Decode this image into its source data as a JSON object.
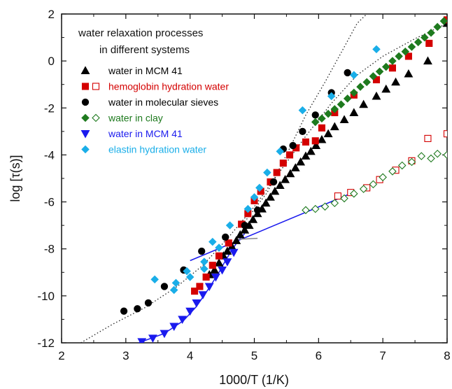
{
  "chart_data": {
    "type": "scatter",
    "title": [
      "water relaxation processes",
      "in different systems"
    ],
    "xlabel": "1000/T (1/K)",
    "ylabel": "log [τ(s)]",
    "xlim": [
      2,
      8
    ],
    "ylim": [
      -12,
      2
    ],
    "xticks": [
      "2",
      "3",
      "4",
      "5",
      "6",
      "7",
      "8"
    ],
    "yticks": [
      "-12",
      "-10",
      "-8",
      "-6",
      "-4",
      "-2",
      "0",
      "2"
    ],
    "grid": false,
    "legend_position": "top-left",
    "series": [
      {
        "name": "water in MCM 41",
        "color": "#000000",
        "marker": "triangle-up",
        "filled": true,
        "points": [
          [
            4.3,
            -9.1
          ],
          [
            4.38,
            -8.9
          ],
          [
            4.45,
            -8.6
          ],
          [
            4.52,
            -8.3
          ],
          [
            4.58,
            -8.1
          ],
          [
            4.65,
            -7.9
          ],
          [
            4.72,
            -7.65
          ],
          [
            4.78,
            -7.4
          ],
          [
            4.85,
            -7.2
          ],
          [
            4.92,
            -7.0
          ],
          [
            4.98,
            -6.75
          ],
          [
            5.05,
            -6.5
          ],
          [
            5.12,
            -6.3
          ],
          [
            5.18,
            -6.05
          ],
          [
            5.25,
            -5.8
          ],
          [
            5.32,
            -5.55
          ],
          [
            5.4,
            -5.3
          ],
          [
            5.48,
            -5.05
          ],
          [
            5.56,
            -4.8
          ],
          [
            5.64,
            -4.55
          ],
          [
            5.72,
            -4.3
          ],
          [
            5.8,
            -4.05
          ],
          [
            5.88,
            -3.85
          ],
          [
            5.96,
            -3.6
          ],
          [
            6.05,
            -3.35
          ],
          [
            6.15,
            -3.1
          ],
          [
            6.25,
            -2.8
          ],
          [
            6.4,
            -2.5
          ],
          [
            6.55,
            -2.2
          ],
          [
            6.7,
            -1.85
          ],
          [
            6.9,
            -1.5
          ],
          [
            7.05,
            -1.2
          ],
          [
            7.2,
            -0.9
          ],
          [
            7.4,
            -0.55
          ],
          [
            7.7,
            0.0
          ],
          [
            8.0,
            1.6
          ]
        ]
      },
      {
        "name": "hemoglobin hydration water",
        "color": "#d40000",
        "marker": "square",
        "filled": true,
        "points": [
          [
            4.07,
            -9.8
          ],
          [
            4.15,
            -9.6
          ],
          [
            4.25,
            -9.2
          ],
          [
            4.35,
            -8.7
          ],
          [
            4.45,
            -8.3
          ],
          [
            4.6,
            -7.75
          ],
          [
            4.8,
            -6.95
          ],
          [
            4.9,
            -6.5
          ],
          [
            5.0,
            -5.95
          ],
          [
            5.1,
            -5.55
          ],
          [
            5.25,
            -5.15
          ],
          [
            5.35,
            -4.75
          ],
          [
            5.45,
            -4.35
          ],
          [
            5.55,
            -4.0
          ],
          [
            5.65,
            -3.7
          ],
          [
            5.8,
            -3.45
          ],
          [
            5.95,
            -3.4
          ],
          [
            6.05,
            -2.85
          ],
          [
            6.25,
            -2.2
          ],
          [
            6.55,
            -1.45
          ],
          [
            6.9,
            -0.8
          ],
          [
            7.15,
            -0.3
          ],
          [
            7.4,
            0.2
          ],
          [
            7.72,
            0.75
          ],
          [
            8.0,
            1.75
          ]
        ]
      },
      {
        "name": "hemoglobin hydration water (open)",
        "color": "#d40000",
        "marker": "square",
        "filled": false,
        "points": [
          [
            6.3,
            -5.75
          ],
          [
            6.5,
            -5.6
          ],
          [
            6.75,
            -5.4
          ],
          [
            6.95,
            -5.05
          ],
          [
            7.2,
            -4.65
          ],
          [
            7.45,
            -4.25
          ],
          [
            7.7,
            -3.3
          ],
          [
            8.0,
            -3.1
          ]
        ]
      },
      {
        "name": "water in molecular sieves",
        "color": "#000000",
        "marker": "circle",
        "filled": true,
        "points": [
          [
            2.97,
            -10.65
          ],
          [
            3.18,
            -10.55
          ],
          [
            3.35,
            -10.3
          ],
          [
            3.6,
            -9.6
          ],
          [
            3.9,
            -8.9
          ],
          [
            4.18,
            -8.1
          ],
          [
            4.55,
            -7.5
          ],
          [
            4.85,
            -7.0
          ],
          [
            5.05,
            -6.35
          ],
          [
            5.3,
            -5.15
          ],
          [
            5.45,
            -3.75
          ],
          [
            5.6,
            -3.6
          ],
          [
            5.75,
            -3.0
          ],
          [
            5.95,
            -2.3
          ],
          [
            6.2,
            -1.35
          ],
          [
            6.45,
            -0.5
          ]
        ]
      },
      {
        "name": "water in clay",
        "color": "#1e7a1e",
        "marker": "diamond",
        "filled": true,
        "points": [
          [
            5.95,
            -2.6
          ],
          [
            6.05,
            -2.45
          ],
          [
            6.15,
            -2.25
          ],
          [
            6.25,
            -2.05
          ],
          [
            6.35,
            -1.85
          ],
          [
            6.45,
            -1.6
          ],
          [
            6.55,
            -1.35
          ],
          [
            6.65,
            -1.1
          ],
          [
            6.75,
            -0.9
          ],
          [
            6.85,
            -0.65
          ],
          [
            6.95,
            -0.45
          ],
          [
            7.05,
            -0.25
          ],
          [
            7.15,
            0.0
          ],
          [
            7.25,
            0.2
          ],
          [
            7.35,
            0.4
          ],
          [
            7.45,
            0.6
          ],
          [
            7.55,
            0.8
          ],
          [
            7.65,
            1.0
          ],
          [
            7.75,
            1.2
          ],
          [
            7.85,
            1.45
          ],
          [
            7.95,
            1.7
          ]
        ]
      },
      {
        "name": "water in clay (open)",
        "color": "#1e7a1e",
        "marker": "diamond",
        "filled": false,
        "points": [
          [
            5.8,
            -6.35
          ],
          [
            5.95,
            -6.3
          ],
          [
            6.1,
            -6.2
          ],
          [
            6.25,
            -6.05
          ],
          [
            6.4,
            -5.85
          ],
          [
            6.55,
            -5.65
          ],
          [
            6.7,
            -5.45
          ],
          [
            6.85,
            -5.25
          ],
          [
            7.0,
            -4.95
          ],
          [
            7.15,
            -4.7
          ],
          [
            7.3,
            -4.45
          ],
          [
            7.45,
            -4.3
          ],
          [
            7.6,
            -4.05
          ],
          [
            7.75,
            -4.15
          ],
          [
            7.85,
            -3.95
          ],
          [
            8.0,
            -4.0
          ]
        ]
      },
      {
        "name": "water in MCM 41 (blue)",
        "color": "#1a1aee",
        "marker": "triangle-down",
        "filled": true,
        "points": [
          [
            3.25,
            -11.95
          ],
          [
            3.42,
            -11.8
          ],
          [
            3.6,
            -11.6
          ],
          [
            3.75,
            -11.3
          ],
          [
            3.88,
            -11.0
          ],
          [
            4.0,
            -10.65
          ],
          [
            4.1,
            -10.3
          ],
          [
            4.2,
            -9.95
          ],
          [
            4.3,
            -9.6
          ],
          [
            4.4,
            -9.2
          ],
          [
            4.5,
            -8.9
          ],
          [
            4.58,
            -8.55
          ],
          [
            4.68,
            -8.15
          ]
        ]
      },
      {
        "name": "elastin hydration water",
        "color": "#1aaee8",
        "marker": "diamond",
        "filled": true,
        "points": [
          [
            3.45,
            -9.3
          ],
          [
            3.75,
            -9.75
          ],
          [
            3.78,
            -9.45
          ],
          [
            3.95,
            -8.95
          ],
          [
            4.0,
            -9.2
          ],
          [
            4.22,
            -8.55
          ],
          [
            4.22,
            -8.85
          ],
          [
            4.45,
            -7.95
          ],
          [
            4.35,
            -7.7
          ],
          [
            4.62,
            -7.0
          ],
          [
            4.9,
            -6.3
          ],
          [
            5.0,
            -5.8
          ],
          [
            5.08,
            -5.4
          ],
          [
            5.2,
            -4.75
          ],
          [
            5.4,
            -3.85
          ],
          [
            5.75,
            -2.1
          ],
          [
            6.2,
            -1.5
          ],
          [
            6.55,
            -0.6
          ],
          [
            6.9,
            0.5
          ]
        ]
      }
    ],
    "lines": [
      {
        "name": "MCM 41 low-T fit",
        "color": "#1a1aee",
        "points": [
          [
            3.2,
            -12.0
          ],
          [
            3.6,
            -11.6
          ],
          [
            3.9,
            -11.05
          ],
          [
            4.1,
            -10.45
          ],
          [
            4.3,
            -9.65
          ],
          [
            4.45,
            -9.0
          ],
          [
            4.55,
            -8.5
          ],
          [
            4.65,
            -8.05
          ],
          [
            4.75,
            -7.65
          ],
          [
            4.85,
            -7.35
          ]
        ]
      },
      {
        "name": "blue straight fit",
        "color": "#1a1aee",
        "points": [
          [
            4.0,
            -8.5
          ],
          [
            6.45,
            -5.7
          ]
        ]
      },
      {
        "name": "grey short segment",
        "color": "#888888",
        "points": [
          [
            4.7,
            -7.6
          ],
          [
            5.05,
            -7.55
          ]
        ]
      }
    ],
    "dotted_curves": [
      {
        "name": "dotted steep",
        "color": "#222222",
        "points": [
          [
            4.85,
            -6.85
          ],
          [
            5.2,
            -5.6
          ],
          [
            5.5,
            -4.0
          ],
          [
            5.8,
            -2.3
          ],
          [
            6.1,
            -0.9
          ],
          [
            6.4,
            0.6
          ],
          [
            6.6,
            1.6
          ],
          [
            6.75,
            2.0
          ]
        ]
      },
      {
        "name": "dotted VFT",
        "color": "#222222",
        "points": [
          [
            2.3,
            -12.0
          ],
          [
            2.8,
            -11.2
          ],
          [
            3.3,
            -10.5
          ],
          [
            3.8,
            -9.6
          ],
          [
            4.2,
            -8.7
          ],
          [
            4.6,
            -7.5
          ],
          [
            5.0,
            -6.2
          ],
          [
            5.4,
            -4.7
          ],
          [
            5.8,
            -3.2
          ],
          [
            6.2,
            -1.8
          ],
          [
            6.6,
            -0.6
          ],
          [
            7.0,
            0.2
          ],
          [
            7.5,
            0.95
          ],
          [
            8.0,
            1.6
          ]
        ]
      }
    ],
    "legend": [
      {
        "label": "water in MCM 41",
        "color": "#000000",
        "text_color": "#000000",
        "markers": [
          "triangle-up-filled"
        ]
      },
      {
        "label": "hemoglobin hydration water",
        "color": "#d40000",
        "text_color": "#d40000",
        "markers": [
          "square-filled",
          "square-open"
        ]
      },
      {
        "label": "water in molecular sieves",
        "color": "#000000",
        "text_color": "#000000",
        "markers": [
          "circle-filled"
        ]
      },
      {
        "label": "water in clay",
        "color": "#1e7a1e",
        "text_color": "#1e7a1e",
        "markers": [
          "diamond-filled",
          "diamond-open"
        ]
      },
      {
        "label": "water in MCM 41",
        "color": "#1a1aee",
        "text_color": "#1a1aee",
        "markers": [
          "triangle-down-filled"
        ]
      },
      {
        "label": "elastin hydration water",
        "color": "#1aaee8",
        "text_color": "#1aaee8",
        "markers": [
          "diamond-filled"
        ]
      }
    ]
  }
}
